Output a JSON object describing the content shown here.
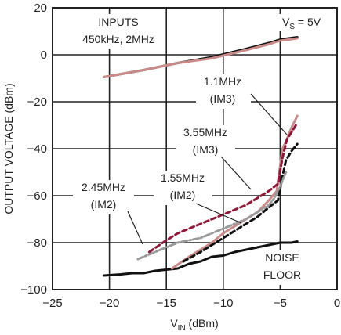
{
  "chart_data": {
    "type": "line",
    "xlabel": "V_IN (dBm)",
    "ylabel": "OUTPUT VOLTAGE (dBm)",
    "xlim": [
      -25,
      0
    ],
    "ylim": [
      -100,
      20
    ],
    "x_ticks": [
      -25,
      -20,
      -15,
      -10,
      -5,
      0
    ],
    "y_ticks": [
      -100,
      -80,
      -60,
      -40,
      -20,
      0,
      20
    ],
    "grid": true,
    "series": [
      {
        "key": "inputs_black",
        "color": "#111111",
        "style": "solid",
        "x": [
          -20.5,
          -17,
          -14,
          -11,
          -8,
          -6,
          -5,
          -3.5
        ],
        "y": [
          -9.5,
          -6.5,
          -3.5,
          -1,
          2.5,
          5,
          6.5,
          7.5
        ]
      },
      {
        "key": "inputs_pink",
        "color": "#c98a8a",
        "style": "solid",
        "x": [
          -20.5,
          -17,
          -14,
          -11,
          -8,
          -6,
          -5,
          -3.5
        ],
        "y": [
          -9.5,
          -6.5,
          -3.5,
          -1.5,
          2,
          4.5,
          6,
          7
        ]
      },
      {
        "key": "noise_floor",
        "color": "#111111",
        "style": "solid",
        "x": [
          -20.5,
          -19,
          -18,
          -17,
          -16,
          -15,
          -14,
          -13,
          -12,
          -11,
          -10,
          -9,
          -8,
          -7,
          -6,
          -5,
          -4,
          -3.5
        ],
        "y": [
          -94,
          -93.5,
          -93,
          -93,
          -92,
          -91.5,
          -91,
          -89,
          -88,
          -86,
          -85.5,
          -84,
          -83,
          -82,
          -81,
          -80,
          -80,
          -79.5
        ]
      },
      {
        "key": "im3_1p1",
        "color": "#c98a8a",
        "style": "solid",
        "x": [
          -14.5,
          -13,
          -12,
          -11,
          -10,
          -9,
          -8,
          -7,
          -6,
          -5.3,
          -4.8,
          -4.5,
          -4,
          -3.5
        ],
        "y": [
          -91,
          -86,
          -83,
          -80,
          -76,
          -73,
          -70,
          -67,
          -62,
          -58,
          -40,
          -37,
          -31,
          -26
        ]
      },
      {
        "key": "im3_3p55",
        "color": "#8b1a3a",
        "style": "dash",
        "x": [
          -16.5,
          -15,
          -14,
          -13,
          -12,
          -11,
          -10,
          -9,
          -8,
          -7,
          -6,
          -5.2,
          -4.8,
          -4.4,
          -4,
          -3.5
        ],
        "y": [
          -84,
          -79,
          -76,
          -74,
          -72,
          -70,
          -68,
          -66,
          -64,
          -61,
          -58,
          -55,
          -44,
          -36,
          -33,
          -29
        ]
      },
      {
        "key": "im2_1p55",
        "color": "#111111",
        "style": "dash",
        "x": [
          -13.5,
          -12,
          -11,
          -10,
          -9,
          -8,
          -7,
          -6,
          -5.2,
          -4.8,
          -4.5,
          -4,
          -3.5
        ],
        "y": [
          -88,
          -84,
          -81,
          -78,
          -75,
          -72,
          -69,
          -65,
          -62,
          -52,
          -45,
          -41,
          -38
        ]
      },
      {
        "key": "im2_2p45",
        "color": "#9a9a9a",
        "style": "dashdot",
        "x": [
          -17.5,
          -16,
          -15,
          -14,
          -13,
          -12,
          -11,
          -10,
          -9,
          -8,
          -7,
          -6,
          -5.5,
          -5,
          -4.5
        ],
        "y": [
          -87,
          -84,
          -82,
          -80,
          -79,
          -78,
          -76,
          -74,
          -72,
          -70,
          -67,
          -64,
          -61,
          -56,
          -50
        ]
      }
    ],
    "annotations": {
      "inputs": "INPUTS",
      "inputs_freq": "450kHz, 2MHz",
      "vs_prefix": "V",
      "vs_sub": "S",
      "vs_suffix": " = 5V",
      "a1_line1": "1.1MHz",
      "a1_line2": "(IM3)",
      "a2_line1": "3.55MHz",
      "a2_line2": "(IM3)",
      "a3_line1": "1.55MHz",
      "a3_line2": "(IM2)",
      "a4_line1": "2.45MHz",
      "a4_line2": "(IM2)",
      "noise_line1": "NOISE",
      "noise_line2": "FLOOR"
    },
    "xlabel_parts": {
      "main": "V",
      "sub": "IN",
      "unit": " (dBm)"
    }
  }
}
